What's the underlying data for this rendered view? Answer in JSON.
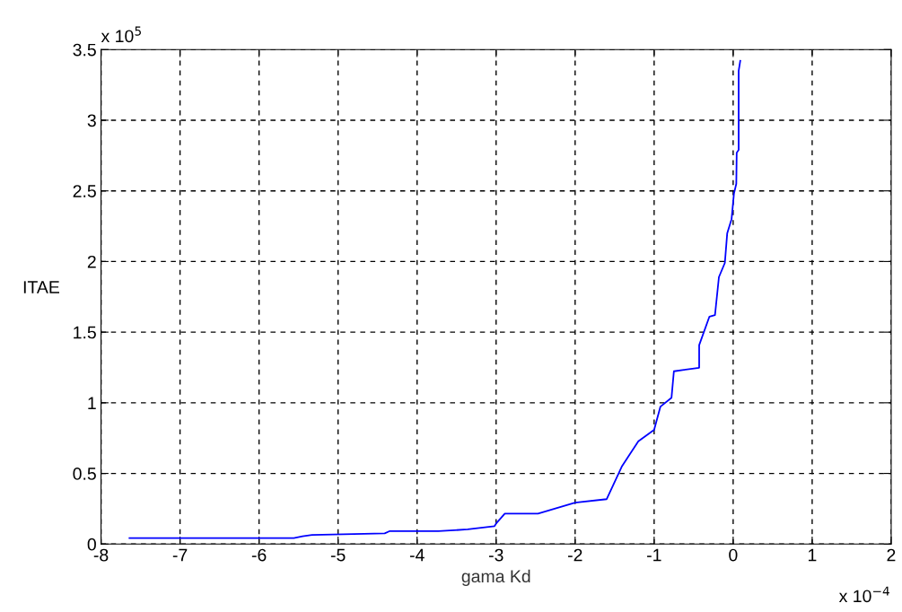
{
  "chart_data": {
    "type": "line",
    "xlabel": "gama Kd",
    "ylabel": "ITAE",
    "x": [
      -7.64,
      -5.56,
      -5.45,
      -5.33,
      -4.41,
      -4.35,
      -3.73,
      -3.36,
      -3.02,
      -3.0,
      -2.89,
      -2.47,
      -2.0,
      -1.6,
      -1.41,
      -1.2,
      -1.0,
      -0.92,
      -0.78,
      -0.75,
      -0.43,
      -0.43,
      -0.3,
      -0.23,
      -0.18,
      -0.105,
      -0.075,
      -0.02,
      0.01,
      0.04,
      0.045,
      0.07,
      0.07,
      0.09
    ],
    "series": [
      {
        "color": "#0000ff",
        "values": [
          0.043,
          0.043,
          0.055,
          0.064,
          0.076,
          0.091,
          0.091,
          0.104,
          0.127,
          0.145,
          0.215,
          0.215,
          0.293,
          0.318,
          0.548,
          0.728,
          0.809,
          0.973,
          1.036,
          1.223,
          1.248,
          1.408,
          1.61,
          1.62,
          1.89,
          1.99,
          2.2,
          2.3,
          2.48,
          2.55,
          2.77,
          2.79,
          3.35,
          3.42
        ]
      }
    ],
    "xlim": [
      -8,
      2
    ],
    "xticks": [
      -8,
      -7,
      -6,
      -5,
      -4,
      -3,
      -2,
      -1,
      0,
      1,
      2
    ],
    "ylim": [
      0,
      3.5
    ],
    "yticks": [
      0,
      0.5,
      1,
      1.5,
      2,
      2.5,
      3,
      3.5
    ],
    "grid": true,
    "line_style": "solid",
    "marker": "none",
    "annotations": [
      "x 10$^{5}$",
      "x 10$^{−4}$"
    ]
  }
}
